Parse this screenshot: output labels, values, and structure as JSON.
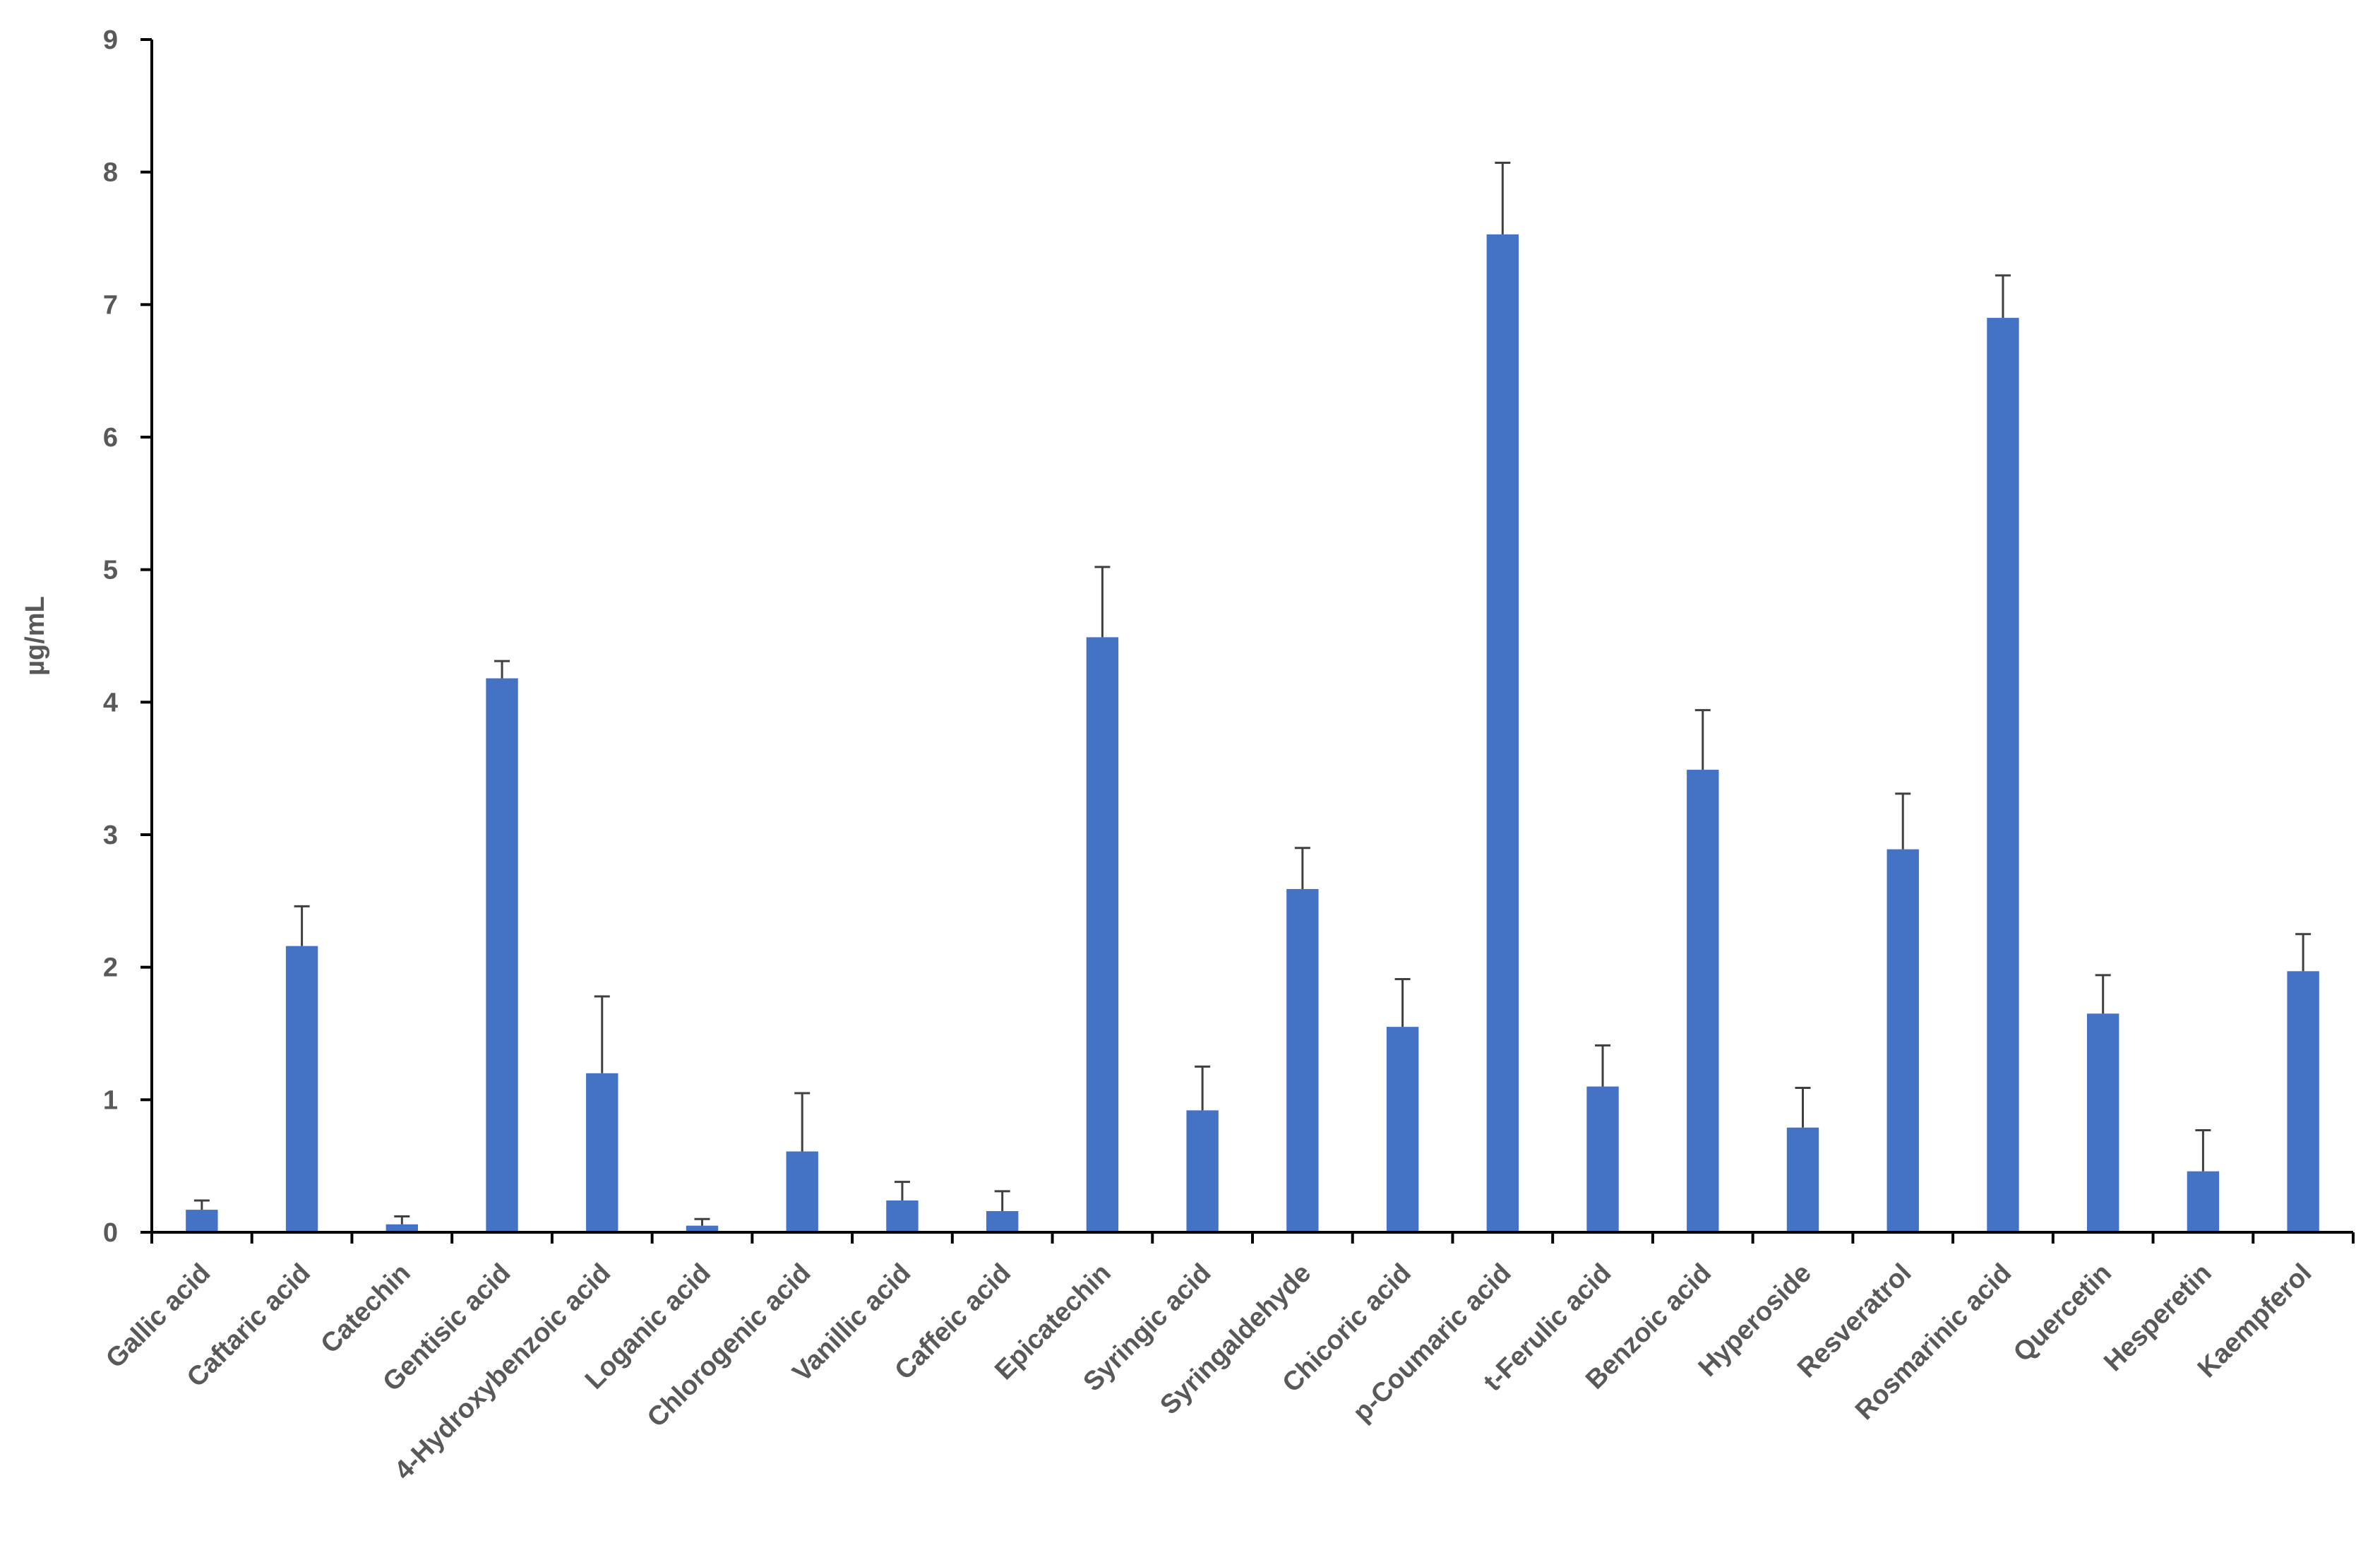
{
  "chart_data": {
    "type": "bar",
    "title": "",
    "xlabel": "",
    "ylabel": "µg/mL",
    "ylim": [
      0,
      9
    ],
    "yticks": [
      0,
      1,
      2,
      3,
      4,
      5,
      6,
      7,
      8,
      9
    ],
    "grid": false,
    "legend": "none",
    "bar_color": "#4472C4",
    "categories": [
      "Gallic acid",
      "Caftaric acid",
      "Catechin",
      "Gentisic acid",
      "4-Hydroxybenzoic acid",
      "Loganic acid",
      "Chlorogenic acid",
      "Vanillic acid",
      "Caffeic acid",
      "Epicatechin",
      "Syringic acid",
      "Syringaldehyde",
      "Chicoric acid",
      "p-Coumaric acid",
      "t-Ferulic acid",
      "Benzoic acid",
      "Hyperoside",
      "Resveratrol",
      "Rosmarinic acid",
      "Quercetin",
      "Hesperetin",
      "Kaempferol"
    ],
    "values": [
      0.17,
      2.16,
      0.06,
      4.18,
      1.2,
      0.05,
      0.61,
      0.24,
      0.16,
      4.49,
      0.92,
      2.59,
      1.55,
      7.53,
      1.1,
      3.49,
      0.79,
      2.89,
      6.9,
      1.65,
      0.46,
      1.97
    ],
    "errors": [
      0.07,
      0.3,
      0.06,
      0.13,
      0.58,
      0.05,
      0.44,
      0.14,
      0.15,
      0.53,
      0.33,
      0.31,
      0.36,
      0.54,
      0.31,
      0.45,
      0.3,
      0.42,
      0.32,
      0.29,
      0.31,
      0.28
    ]
  }
}
